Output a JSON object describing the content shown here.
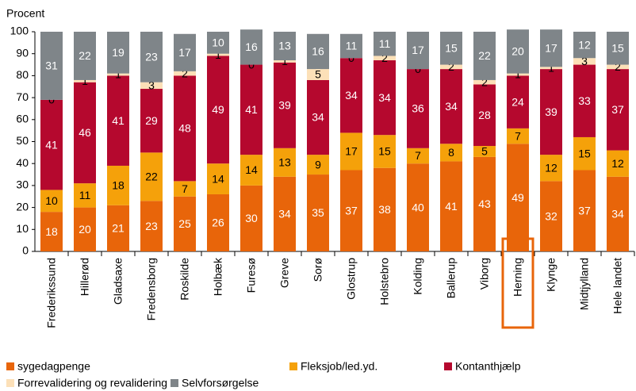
{
  "chart_data": {
    "type": "stacked_bar",
    "y_axis_label": "Procent",
    "categories": [
      "Frederikssund",
      "Hillerød",
      "Gladsaxe",
      "Fredensborg",
      "Roskilde",
      "Holbæk",
      "Furesø",
      "Greve",
      "Sorø",
      "Glostrup",
      "Holstebro",
      "Kolding",
      "Ballerup",
      "Viborg",
      "Herning",
      "Klynge",
      "Midtjylland",
      "Hele landet"
    ],
    "series": [
      {
        "name": "sygedagpenge",
        "color": "#e8650a",
        "values": [
          18,
          20,
          21,
          23,
          25,
          26,
          30,
          34,
          35,
          37,
          38,
          40,
          41,
          43,
          49,
          32,
          37,
          34
        ]
      },
      {
        "name": "Fleksjob/led.yd.",
        "color": "#f5a10a",
        "values": [
          10,
          11,
          18,
          22,
          7,
          14,
          14,
          13,
          9,
          17,
          15,
          7,
          8,
          5,
          7,
          12,
          15,
          12
        ]
      },
      {
        "name": "Kontanthjælp",
        "color": "#b5082e",
        "values": [
          41,
          46,
          41,
          29,
          48,
          49,
          41,
          39,
          34,
          34,
          34,
          36,
          34,
          28,
          24,
          39,
          33,
          37
        ]
      },
      {
        "name": "Forrevalidering og revalidering",
        "color": "#fce0b8",
        "values": [
          0,
          1,
          1,
          3,
          2,
          1,
          0,
          1,
          5,
          0,
          2,
          0,
          2,
          2,
          1,
          1,
          3,
          2
        ]
      },
      {
        "name": "Selvforsørgelse",
        "color": "#7f8589",
        "values": [
          31,
          22,
          19,
          23,
          17,
          10,
          16,
          13,
          16,
          11,
          11,
          17,
          15,
          22,
          20,
          17,
          12,
          15
        ]
      }
    ],
    "ylim": [
      0,
      100
    ],
    "yticks": [
      0,
      10,
      20,
      30,
      40,
      50,
      60,
      70,
      80,
      90,
      100
    ],
    "grid": false
  }
}
